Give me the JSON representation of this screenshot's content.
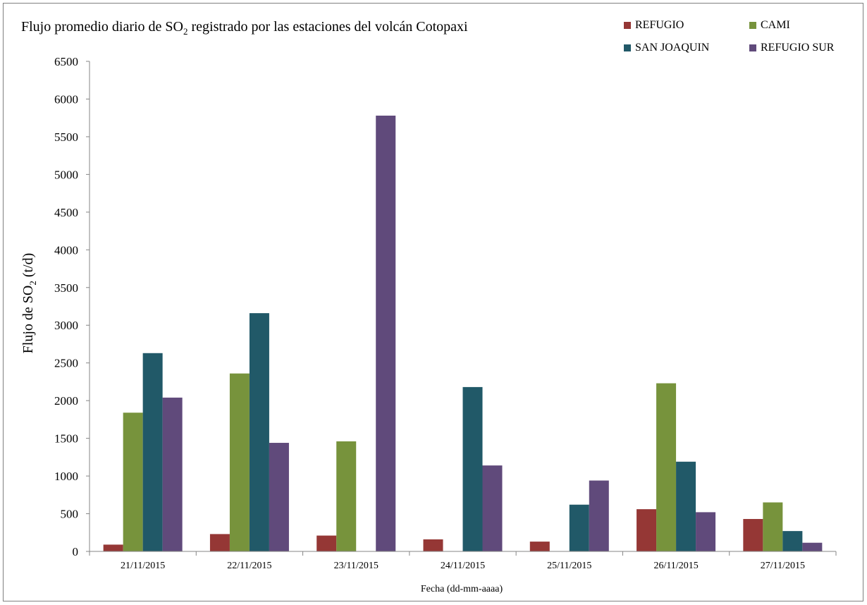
{
  "title_prefix": "Flujo promedio diario de SO",
  "title_sub": "2",
  "title_suffix": " registrado por las estaciones del volcán Cotopaxi",
  "ylabel_prefix": "Flujo de SO",
  "ylabel_sub": "2",
  "ylabel_suffix": " (t/d)",
  "xlabel": "Fecha (dd-mm-aaaa)",
  "legend": [
    {
      "name": "REFUGIO",
      "color": "#953735"
    },
    {
      "name": "CAMI",
      "color": "#77933c"
    },
    {
      "name": "SAN JOAQUIN",
      "color": "#215968"
    },
    {
      "name": "REFUGIO SUR",
      "color": "#604a7b"
    }
  ],
  "chart_data": {
    "type": "bar",
    "title": "Flujo promedio diario de SO2 registrado por las estaciones del volcán Cotopaxi",
    "xlabel": "Fecha (dd-mm-aaaa)",
    "ylabel": "Flujo de SO2 (t/d)",
    "ylim": [
      0,
      6500
    ],
    "yticks": [
      0,
      500,
      1000,
      1500,
      2000,
      2500,
      3000,
      3500,
      4000,
      4500,
      5000,
      5500,
      6000,
      6500
    ],
    "categories": [
      "21/11/2015",
      "22/11/2015",
      "23/11/2015",
      "24/11/2015",
      "25/11/2015",
      "26/11/2015",
      "27/11/2015"
    ],
    "series": [
      {
        "name": "REFUGIO",
        "color": "#953735",
        "values": [
          90,
          230,
          210,
          160,
          130,
          560,
          430
        ]
      },
      {
        "name": "CAMI",
        "color": "#77933c",
        "values": [
          1840,
          2360,
          1460,
          null,
          null,
          2230,
          650
        ]
      },
      {
        "name": "SAN JOAQUIN",
        "color": "#215968",
        "values": [
          2630,
          3160,
          null,
          2180,
          620,
          1190,
          270
        ]
      },
      {
        "name": "REFUGIO SUR",
        "color": "#604a7b",
        "values": [
          2040,
          1440,
          5780,
          1140,
          940,
          520,
          115
        ]
      }
    ],
    "grid": false,
    "legend_position": "top-right"
  }
}
